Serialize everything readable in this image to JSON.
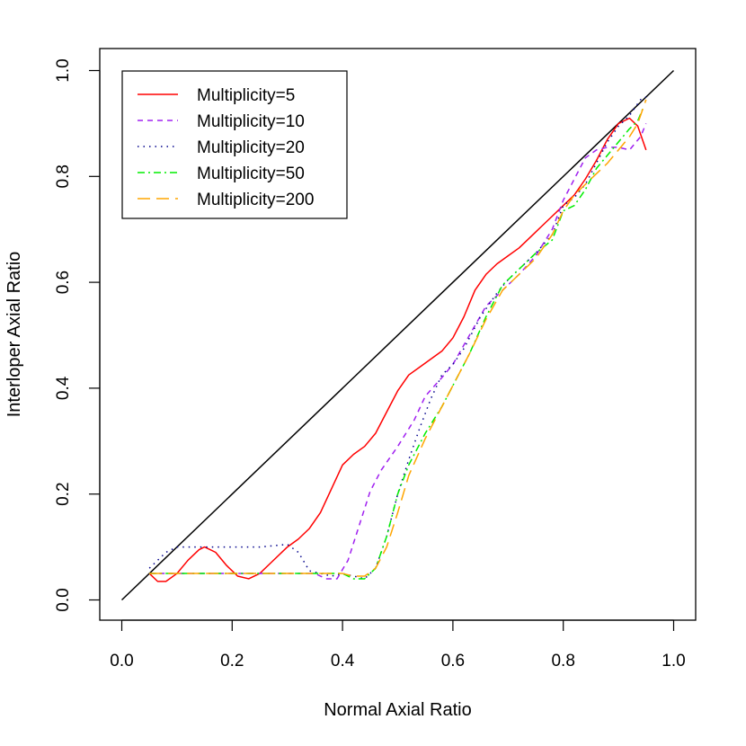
{
  "chart_data": {
    "type": "line",
    "title": "",
    "xlabel": "Normal Axial Ratio",
    "ylabel": "Interloper Axial Ratio",
    "xlim": [
      0,
      1
    ],
    "ylim": [
      0,
      1
    ],
    "x_ticks": [
      0.0,
      0.2,
      0.4,
      0.6,
      0.8,
      1.0
    ],
    "y_ticks": [
      0.0,
      0.2,
      0.4,
      0.6,
      0.8,
      1.0
    ],
    "x_tick_labels": [
      "0.0",
      "0.2",
      "0.4",
      "0.6",
      "0.8",
      "1.0"
    ],
    "y_tick_labels": [
      "0.0",
      "0.2",
      "0.4",
      "0.6",
      "0.8",
      "1.0"
    ],
    "grid": false,
    "legend_position": "top-left",
    "reference_line": {
      "x": [
        0,
        1
      ],
      "y": [
        0,
        1
      ],
      "color": "#000000"
    },
    "series": [
      {
        "name": "Multiplicity=5",
        "color": "#ff0000",
        "dash": "solid",
        "x": [
          0.05,
          0.065,
          0.08,
          0.1,
          0.12,
          0.14,
          0.15,
          0.17,
          0.19,
          0.21,
          0.23,
          0.25,
          0.27,
          0.3,
          0.32,
          0.34,
          0.36,
          0.38,
          0.4,
          0.42,
          0.44,
          0.46,
          0.48,
          0.5,
          0.52,
          0.54,
          0.56,
          0.58,
          0.6,
          0.62,
          0.64,
          0.66,
          0.68,
          0.7,
          0.72,
          0.74,
          0.76,
          0.78,
          0.8,
          0.82,
          0.84,
          0.86,
          0.88,
          0.9,
          0.92,
          0.935,
          0.95
        ],
        "y": [
          0.05,
          0.035,
          0.035,
          0.05,
          0.075,
          0.095,
          0.1,
          0.09,
          0.065,
          0.045,
          0.04,
          0.05,
          0.07,
          0.1,
          0.115,
          0.135,
          0.165,
          0.21,
          0.255,
          0.275,
          0.29,
          0.315,
          0.355,
          0.395,
          0.425,
          0.44,
          0.455,
          0.47,
          0.495,
          0.535,
          0.585,
          0.615,
          0.635,
          0.65,
          0.665,
          0.685,
          0.705,
          0.725,
          0.745,
          0.765,
          0.795,
          0.83,
          0.87,
          0.9,
          0.91,
          0.895,
          0.85
        ]
      },
      {
        "name": "Multiplicity=10",
        "color": "#a020f0",
        "dash": "6,5",
        "x": [
          0.05,
          0.1,
          0.15,
          0.2,
          0.25,
          0.3,
          0.35,
          0.37,
          0.39,
          0.41,
          0.43,
          0.45,
          0.47,
          0.5,
          0.53,
          0.55,
          0.58,
          0.6,
          0.63,
          0.66,
          0.69,
          0.72,
          0.75,
          0.78,
          0.8,
          0.82,
          0.84,
          0.86,
          0.88,
          0.9,
          0.92,
          0.94,
          0.95
        ],
        "y": [
          0.05,
          0.05,
          0.05,
          0.05,
          0.05,
          0.05,
          0.05,
          0.04,
          0.04,
          0.075,
          0.14,
          0.205,
          0.245,
          0.29,
          0.34,
          0.385,
          0.42,
          0.445,
          0.5,
          0.555,
          0.585,
          0.615,
          0.65,
          0.7,
          0.755,
          0.795,
          0.835,
          0.85,
          0.855,
          0.855,
          0.85,
          0.875,
          0.9
        ]
      },
      {
        "name": "Multiplicity=20",
        "color": "#00008b",
        "dash": "1.5,5",
        "x": [
          0.05,
          0.08,
          0.1,
          0.13,
          0.15,
          0.2,
          0.25,
          0.3,
          0.32,
          0.34,
          0.36,
          0.38,
          0.4,
          0.42,
          0.44,
          0.46,
          0.48,
          0.5,
          0.52,
          0.54,
          0.56,
          0.58,
          0.6,
          0.62,
          0.65,
          0.68,
          0.7,
          0.72,
          0.75,
          0.78,
          0.8,
          0.82,
          0.84,
          0.86,
          0.88,
          0.9,
          0.92,
          0.94,
          0.95
        ],
        "y": [
          0.06,
          0.09,
          0.1,
          0.1,
          0.1,
          0.1,
          0.1,
          0.105,
          0.09,
          0.055,
          0.05,
          0.045,
          0.05,
          0.045,
          0.04,
          0.06,
          0.12,
          0.2,
          0.265,
          0.325,
          0.38,
          0.425,
          0.445,
          0.475,
          0.535,
          0.58,
          0.605,
          0.625,
          0.655,
          0.69,
          0.745,
          0.76,
          0.785,
          0.825,
          0.865,
          0.895,
          0.915,
          0.945,
          0.95
        ]
      },
      {
        "name": "Multiplicity=50",
        "color": "#00ee00",
        "dash": "8,4,2,4",
        "x": [
          0.05,
          0.1,
          0.15,
          0.2,
          0.25,
          0.3,
          0.35,
          0.38,
          0.4,
          0.42,
          0.44,
          0.46,
          0.48,
          0.5,
          0.52,
          0.55,
          0.58,
          0.6,
          0.63,
          0.66,
          0.69,
          0.72,
          0.75,
          0.78,
          0.8,
          0.82,
          0.84,
          0.86,
          0.88,
          0.9,
          0.92,
          0.935,
          0.945
        ],
        "y": [
          0.05,
          0.05,
          0.05,
          0.05,
          0.05,
          0.05,
          0.05,
          0.05,
          0.05,
          0.04,
          0.04,
          0.06,
          0.12,
          0.2,
          0.255,
          0.315,
          0.365,
          0.405,
          0.465,
          0.535,
          0.595,
          0.625,
          0.655,
          0.68,
          0.735,
          0.745,
          0.775,
          0.815,
          0.84,
          0.865,
          0.89,
          0.905,
          0.93
        ]
      },
      {
        "name": "Multiplicity=200",
        "color": "#ffa500",
        "dash": "14,7",
        "x": [
          0.05,
          0.1,
          0.15,
          0.2,
          0.25,
          0.3,
          0.35,
          0.38,
          0.4,
          0.42,
          0.44,
          0.46,
          0.48,
          0.5,
          0.52,
          0.55,
          0.58,
          0.6,
          0.63,
          0.66,
          0.69,
          0.72,
          0.75,
          0.78,
          0.8,
          0.82,
          0.84,
          0.86,
          0.88,
          0.9,
          0.92,
          0.935,
          0.95
        ],
        "y": [
          0.05,
          0.05,
          0.05,
          0.05,
          0.05,
          0.05,
          0.05,
          0.05,
          0.05,
          0.045,
          0.045,
          0.06,
          0.1,
          0.165,
          0.235,
          0.305,
          0.365,
          0.405,
          0.465,
          0.53,
          0.585,
          0.615,
          0.645,
          0.69,
          0.735,
          0.765,
          0.785,
          0.805,
          0.825,
          0.85,
          0.875,
          0.9,
          0.945
        ]
      }
    ]
  }
}
